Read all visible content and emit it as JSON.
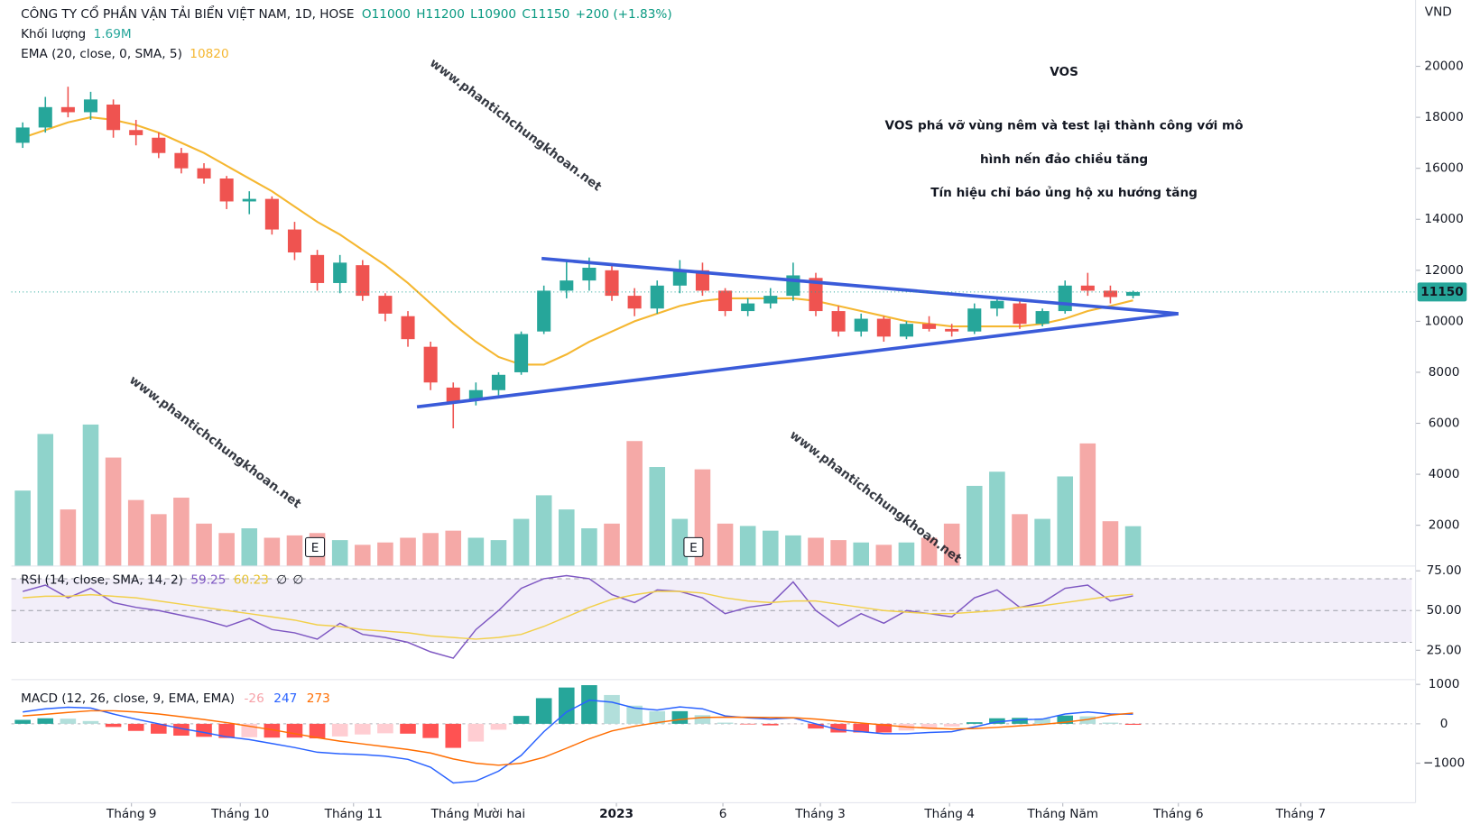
{
  "chart_data": [
    {
      "type": "candlestick",
      "header": "CÔNG TY CỔ PHẦN VẬN TẢI BIỂN VIỆT NAM, 1D, HOSE",
      "ohlc_text": [
        "O11000",
        "H11200",
        "L10900",
        "C11150",
        "+200 (+1.83%)"
      ],
      "volume_label": "Khối lượng",
      "volume_value": "1.69M",
      "ema_label": "EMA (20, close, 0, SMA, 5)",
      "y_unit": "VND",
      "open": [
        17000,
        17600,
        18400,
        18200,
        18500,
        17500,
        17200,
        16600,
        16000,
        15600,
        14700,
        14800,
        13600,
        12600,
        11500,
        12200,
        11000,
        10200,
        9000,
        7400,
        6900,
        7300,
        8000,
        9600,
        11200,
        11600,
        12000,
        11000,
        10500,
        11400,
        12000,
        11200,
        10400,
        10700,
        11000,
        11700,
        10400,
        9600,
        10100,
        9400,
        9900,
        9700,
        9600,
        10500,
        10700,
        9900,
        10400,
        11400,
        11200,
        11000
      ],
      "high": [
        17800,
        18800,
        19200,
        19000,
        18700,
        17900,
        17400,
        16800,
        16200,
        15700,
        15100,
        14900,
        13900,
        12800,
        12600,
        12400,
        11100,
        10400,
        9200,
        7600,
        7600,
        8000,
        9600,
        11400,
        12400,
        12500,
        12200,
        11300,
        11600,
        12400,
        12300,
        11300,
        10900,
        11300,
        12300,
        11900,
        10600,
        10300,
        10200,
        10000,
        10200,
        9900,
        10700,
        10900,
        10800,
        10500,
        11600,
        11900,
        11400,
        11200
      ],
      "low": [
        16800,
        17400,
        18000,
        17900,
        17200,
        16900,
        16400,
        15800,
        15400,
        14400,
        14200,
        13400,
        12400,
        11200,
        11100,
        10800,
        10000,
        9000,
        7300,
        5800,
        6700,
        7100,
        7900,
        9500,
        10900,
        11200,
        10800,
        10200,
        10300,
        11100,
        11000,
        10200,
        10200,
        10500,
        10800,
        10200,
        9400,
        9400,
        9200,
        9300,
        9600,
        9400,
        9500,
        10200,
        9700,
        9800,
        10300,
        11000,
        10700,
        10900
      ],
      "close": [
        17600,
        18400,
        18200,
        18700,
        17500,
        17300,
        16600,
        16000,
        15600,
        14700,
        14800,
        13600,
        12700,
        11500,
        12300,
        11000,
        10300,
        9300,
        7600,
        6800,
        7300,
        7900,
        9500,
        11200,
        11600,
        12100,
        11000,
        10500,
        11400,
        12000,
        11200,
        10400,
        10700,
        11000,
        11800,
        10400,
        9600,
        10100,
        9400,
        9900,
        9700,
        9600,
        10500,
        10800,
        9900,
        10400,
        11400,
        11200,
        10950,
        11150
      ],
      "ema": {
        "color": "#f5b731",
        "values": [
          17200,
          17500,
          17800,
          18000,
          17900,
          17700,
          17400,
          17000,
          16600,
          16100,
          15600,
          15100,
          14500,
          13900,
          13400,
          12800,
          12200,
          11500,
          10700,
          9900,
          9200,
          8600,
          8300,
          8300,
          8700,
          9200,
          9600,
          10000,
          10300,
          10600,
          10800,
          10900,
          10900,
          10900,
          10900,
          10800,
          10600,
          10400,
          10200,
          10000,
          9900,
          9800,
          9800,
          9800,
          9800,
          9900,
          10100,
          10400,
          10600,
          10820
        ]
      },
      "volume": {
        "lim": [
          0,
          24
        ],
        "values": [
          3.2,
          5.6,
          2.4,
          6.0,
          4.6,
          2.8,
          2.2,
          2.9,
          1.8,
          1.4,
          1.6,
          1.2,
          1.3,
          1.4,
          1.1,
          0.9,
          1.0,
          1.2,
          1.4,
          1.5,
          1.2,
          1.1,
          2.0,
          3.0,
          2.4,
          1.6,
          1.8,
          5.3,
          4.2,
          2.0,
          4.1,
          1.8,
          1.7,
          1.5,
          1.3,
          1.2,
          1.1,
          1.0,
          0.9,
          1.0,
          1.2,
          1.8,
          3.4,
          4.0,
          2.2,
          2.0,
          3.8,
          5.2,
          1.9,
          1.69
        ]
      },
      "up_color": "#26a69a",
      "down_color": "#ef5350",
      "volume_up_color": "#8fd3cb",
      "volume_down_color": "#f5a9a7",
      "ylim": [
        400,
        22600
      ],
      "yticks": [
        2000,
        4000,
        6000,
        8000,
        10000,
        12000,
        14000,
        16000,
        18000,
        20000
      ],
      "xlim": [
        -0.5,
        61.3
      ],
      "xticks": [
        {
          "value": 4.8,
          "label": "Tháng 9"
        },
        {
          "value": 9.6,
          "label": "Tháng 10"
        },
        {
          "value": 14.6,
          "label": "Tháng 11"
        },
        {
          "value": 20.1,
          "label": "Tháng Mười hai"
        },
        {
          "value": 26.2,
          "label": "2023",
          "bold": true
        },
        {
          "value": 30.9,
          "label": "6"
        },
        {
          "value": 35.2,
          "label": "Tháng 3"
        },
        {
          "value": 40.9,
          "label": "Tháng 4"
        },
        {
          "value": 45.9,
          "label": "Tháng Năm"
        },
        {
          "value": 51.0,
          "label": "Tháng 6"
        },
        {
          "value": 56.4,
          "label": "Tháng 7"
        }
      ],
      "events": [
        {
          "x": 12.9,
          "label": "E"
        },
        {
          "x": 29.6,
          "label": "E"
        }
      ],
      "trendlines": [
        {
          "color": "#3a5bd9",
          "x": [
            22.9,
            51.0
          ],
          "y": [
            12463,
            10299
          ]
        },
        {
          "color": "#3a5bd9",
          "x": [
            17.4,
            51.0
          ],
          "y": [
            6642,
            10299
          ]
        }
      ],
      "annotations": {
        "ticker": "VOS",
        "ticker_color": "#7ac943",
        "color": "#e8201e",
        "lines": [
          "VOS phá vỡ vùng nêm và test lại thành công với mô",
          "hình nến đảo chiều tăng",
          "Tín hiệu chỉ báo ủng hộ xu hướng tăng"
        ]
      },
      "watermarks": [
        "www.phantichchungkhoan.net",
        "www.phantichchungkhoan.net",
        "www.phantichchungkhoan.net"
      ]
    },
    {
      "type": "rsi",
      "label": "RSI (14, close, SMA, 14, 2)",
      "extra": [
        "∅",
        "∅"
      ],
      "ylim": [
        6.5,
        76.8
      ],
      "yticks": [
        {
          "value": 75,
          "label": "75.00"
        },
        {
          "value": 50,
          "label": "50.00"
        },
        {
          "value": 25,
          "label": "25.00"
        }
      ],
      "band": [
        30,
        70
      ],
      "midline": 50,
      "series": [
        {
          "name": "RSI",
          "color": "#7e57c2",
          "values": [
            62,
            66,
            58,
            64,
            55,
            52,
            50,
            47,
            44,
            40,
            45,
            38,
            36,
            32,
            42,
            35,
            33,
            30,
            24,
            20,
            38,
            50,
            64,
            70,
            72,
            70,
            60,
            55,
            63,
            62,
            58,
            48,
            52,
            54,
            68,
            50,
            40,
            48,
            42,
            50,
            48,
            46,
            58,
            63,
            52,
            55,
            64,
            66,
            56,
            59.25
          ]
        },
        {
          "name": "MA",
          "color": "#f2d04b",
          "values": [
            58,
            59,
            59,
            60,
            59,
            58,
            56,
            54,
            52,
            50,
            48,
            46,
            44,
            41,
            40,
            38,
            37,
            36,
            34,
            33,
            32,
            33,
            35,
            40,
            46,
            52,
            57,
            60,
            62,
            62,
            61,
            58,
            56,
            55,
            56,
            56,
            54,
            52,
            50,
            49,
            48,
            48,
            49,
            50,
            52,
            53,
            55,
            57,
            59,
            60.23
          ]
        }
      ]
    },
    {
      "type": "macd",
      "label": "MACD (12, 26, close, 9, EMA, EMA)",
      "ylim": [
        -2000,
        1120
      ],
      "yticks": [
        1000,
        0,
        {
          "value": -1000,
          "label": "−1000"
        }
      ],
      "histogram": {
        "colors": [
          "#26a69a",
          "#b2dfdb",
          "#ff5252",
          "#ffcdd2"
        ],
        "legend_color": "#f7a1a8",
        "values": [
          100,
          140,
          130,
          70,
          -80,
          -180,
          -250,
          -300,
          -330,
          -360,
          -340,
          -350,
          -350,
          -370,
          -320,
          -270,
          -240,
          -250,
          -360,
          -610,
          -450,
          -150,
          200,
          650,
          920,
          980,
          730,
          460,
          320,
          320,
          220,
          30,
          -15,
          -40,
          -5,
          -120,
          -220,
          -220,
          -220,
          -170,
          -110,
          -70,
          40,
          140,
          150,
          135,
          210,
          190,
          30,
          -26
        ]
      },
      "series": [
        {
          "name": "MACD",
          "color": "#2962ff",
          "values": [
            300,
            380,
            420,
            400,
            250,
            120,
            0,
            -120,
            -220,
            -330,
            -400,
            -500,
            -600,
            -720,
            -760,
            -780,
            -820,
            -900,
            -1100,
            -1500,
            -1450,
            -1200,
            -800,
            -200,
            300,
            600,
            550,
            400,
            350,
            430,
            380,
            200,
            150,
            120,
            150,
            0,
            -150,
            -200,
            -250,
            -250,
            -220,
            -200,
            -80,
            50,
            100,
            120,
            250,
            300,
            250,
            247
          ]
        },
        {
          "name": "Signal",
          "color": "#ff6d00",
          "values": [
            200,
            240,
            290,
            330,
            330,
            300,
            250,
            180,
            110,
            30,
            -60,
            -150,
            -250,
            -350,
            -440,
            -510,
            -580,
            -650,
            -740,
            -890,
            -1000,
            -1050,
            -1000,
            -850,
            -620,
            -380,
            -180,
            -60,
            30,
            110,
            160,
            170,
            165,
            160,
            155,
            120,
            70,
            20,
            -30,
            -80,
            -110,
            -130,
            -120,
            -90,
            -50,
            -15,
            40,
            110,
            220,
            273
          ]
        }
      ]
    }
  ]
}
